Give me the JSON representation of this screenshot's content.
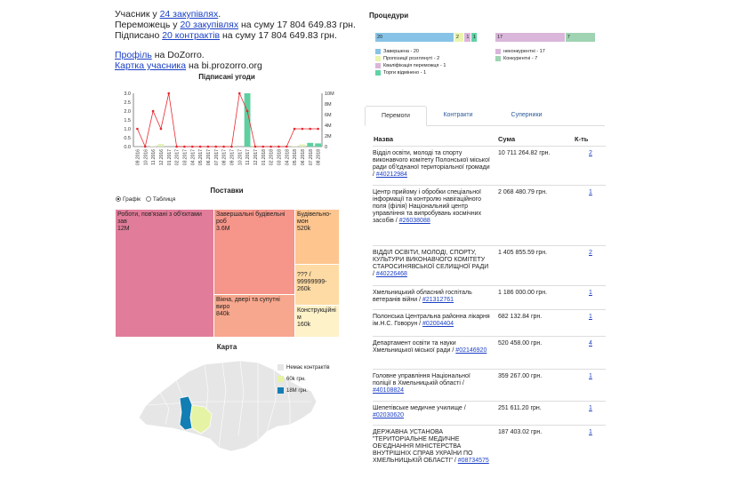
{
  "info": {
    "participant_prefix": "Учасник у ",
    "participant_link": "24 закупівлях",
    "participant_suffix": ".",
    "winner_prefix": "Переможець у ",
    "winner_link": "20 закупівлях",
    "winner_suffix": " на суму 17 804 649.83 грн.",
    "signed_prefix": "Підписано ",
    "signed_link": "20 контрактів",
    "signed_suffix": " на суму 17 804 649.83 грн.",
    "profile_link": "Профіль",
    "profile_suffix": " на DoZorro.",
    "card_link": "Картка учасника",
    "card_suffix": " на bi.prozorro.org"
  },
  "signed_chart": {
    "title": "Підписані угоди",
    "chart_data": {
      "type": "bar+line",
      "categories": [
        "09.2016",
        "10.2016",
        "11.2016",
        "12.2016",
        "01.2017",
        "02.2017",
        "03.2017",
        "04.2017",
        "05.2017",
        "06.2017",
        "07.2017",
        "08.2017",
        "09.2017",
        "10.2017",
        "11.2017",
        "12.2017",
        "01.2018",
        "02.2018",
        "03.2018",
        "04.2018",
        "05.2018",
        "06.2018",
        "07.2018",
        "08.2018"
      ],
      "series": [
        {
          "values": [
            0,
            0,
            0.1,
            0.45,
            0,
            0,
            0,
            0,
            0,
            0,
            0,
            0.05,
            0.1,
            0,
            10,
            0.2,
            0,
            0,
            0,
            0,
            0.1,
            0.4,
            0.7,
            0.6
          ]
        },
        {
          "values": [
            1,
            0,
            2,
            1,
            3,
            0,
            0,
            0,
            0,
            0,
            0,
            0,
            0,
            3,
            2,
            0,
            0,
            0,
            0,
            0,
            1,
            1,
            1,
            1
          ]
        }
      ],
      "y_left_ticks": [
        "0.0",
        "0.5",
        "1.0",
        "1.5",
        "2.0",
        "2.5",
        "3.0"
      ],
      "y_right_ticks": [
        "0",
        "2M",
        "4M",
        "6M",
        "8M",
        "10M"
      ],
      "left_range": [
        0,
        3
      ],
      "right_range": [
        0,
        10
      ]
    }
  },
  "supplies": {
    "title": "Поставки",
    "radio_graph": "Графік",
    "radio_table": "Таблиця",
    "cells": [
      {
        "label": "Роботи, пов'язані з об'єктами зав",
        "value": "12M",
        "color": "#e17c9a"
      },
      {
        "label": "Завершальні будівельні роб",
        "value": "3.6M",
        "color": "#f6958a"
      },
      {
        "label": "Вікна, двері та супутні виро",
        "value": "840k",
        "color": "#f7a78d"
      },
      {
        "label": "Будівельно-мон",
        "value": "520k",
        "color": "#fec58e"
      },
      {
        "label": "??? / 99999999-",
        "value": "260k",
        "color": "#fedba4"
      },
      {
        "label": "Конструкційні м",
        "value": "160k",
        "color": "#fef2c8"
      }
    ]
  },
  "map": {
    "title": "Карта",
    "legend": [
      "Немає контрактів",
      "60k грн.",
      "18M грн."
    ],
    "colors": [
      "#e6e6e6",
      "#e5f3a5",
      "#137eb3"
    ]
  },
  "procedures": {
    "title": "Процедури",
    "bar1": [
      {
        "value": "20",
        "color": "#86c3e6"
      },
      {
        "value": "2",
        "color": "#e9f5ad"
      },
      {
        "value": "1",
        "color": "#d9b6da"
      },
      {
        "value": "1",
        "color": "#5fd3a4"
      }
    ],
    "bar2": [
      {
        "value": "17",
        "color": "#d9b6da"
      },
      {
        "value": "7",
        "color": "#9fd3b2"
      }
    ],
    "legend1": [
      {
        "label": "Завершена - 20",
        "color": "#86c3e6"
      },
      {
        "label": "Пропозиції розглянуті - 2",
        "color": "#e9f5ad"
      },
      {
        "label": "Кваліфікація переможця - 1",
        "color": "#d9b6da"
      },
      {
        "label": "Торги відмінено - 1",
        "color": "#5fd3a4"
      }
    ],
    "legend2": [
      {
        "label": "неконкурентні - 17",
        "color": "#d9b6da"
      },
      {
        "label": "Конкурентні - 7",
        "color": "#9fd3b2"
      }
    ]
  },
  "tabs": [
    "Перемоги",
    "Контракти",
    "Суперники"
  ],
  "table": {
    "headers": [
      "Назва",
      "Сума",
      "К-ть"
    ],
    "rows": [
      {
        "name": "Відділ освіти, молоді та спорту виконавчого комітету Полонської міської ради об'єднаної територіальної громади / ",
        "code": "#40212984",
        "sum": "10 711 264.82 грн.",
        "count": "2"
      },
      {
        "name": "Центр прийому і обробки спеціальної інформації та контролю навігаційного поля (філія) Національний центр управління та випробувань космічних засобів / ",
        "code": "#26038088",
        "sum": "2 068 480.79 грн.",
        "count": "1"
      },
      {
        "name": "ВІДДІЛ ОСВІТИ, МОЛОДІ, СПОРТУ, КУЛЬТУРИ ВИКОНАВЧОГО КОМІТЕТУ СТАРОСИНЯВСЬКОЇ СЕЛИЩНОЇ РАДИ / ",
        "code": "#40226468",
        "sum": "1 405 855.59 грн.",
        "count": "2"
      },
      {
        "name": "Хмельницький обласний госпіталь ветеранів війни / ",
        "code": "#21312761",
        "sum": "1 186 000.00 грн.",
        "count": "1"
      },
      {
        "name": "Полонська Центральна районна лікарня ім.Н.С. Говорун / ",
        "code": "#02004404",
        "sum": "682 132.84 грн.",
        "count": "1"
      },
      {
        "name": "Департамент освіти та науки Хмельницької міської ради / ",
        "code": "#02146920",
        "sum": "520 458.00 грн.",
        "count": "4"
      },
      {
        "name": "Головне управління Національної поліції в Хмельницькій області / ",
        "code": "#40108824",
        "sum": "359 267.00 грн.",
        "count": "1"
      },
      {
        "name": "Шепетівське медичне училище / ",
        "code": "#02030620",
        "sum": "251 611.20 грн.",
        "count": "1"
      },
      {
        "name": "ДЕРЖАВНА УСТАНОВА \"ТЕРИТОРІАЛЬНЕ МЕДИЧНЕ ОБ'ЄДНАННЯ МІНІСТЕРСТВА ВНУТРІШНІХ СПРАВ УКРАЇНИ ПО ХМЕЛЬНИЦЬКІЙ ОБЛАСТІ\" / ",
        "code": "#08734575",
        "sum": "187 403.02 грн.",
        "count": "1"
      }
    ]
  }
}
